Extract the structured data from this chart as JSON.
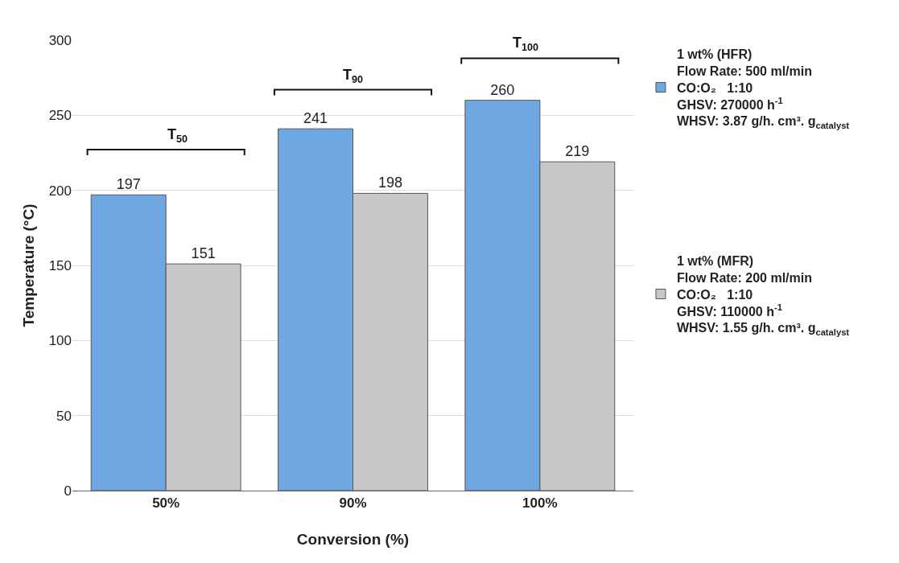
{
  "chart_data": {
    "type": "bar",
    "xlabel": "Conversion (%)",
    "ylabel": "Temperature (°C)",
    "categories": [
      "50%",
      "90%",
      "100%"
    ],
    "series": [
      {
        "name": "1 wt% (HFR)\nFlow Rate: 500 ml/min\nCO:O₂   1:10\nGHSV: 270000 h$^{-1}$\nWHSV: 3.87 g/h. cm³. g$_{catalyst}$",
        "color": "#6fa8e0",
        "values": [
          197,
          241,
          260
        ]
      },
      {
        "name": "1 wt% (MFR)\nFlow Rate: 200 ml/min\nCO:O₂   1:10\nGHSV: 110000 h$^{-1}$\nWHSV: 1.55 g/h. cm³. g$_{catalyst}$",
        "color": "#c8c8c8",
        "values": [
          151,
          198,
          219
        ]
      }
    ],
    "ylim": [
      0,
      300
    ],
    "yticks": [
      0,
      50,
      100,
      150,
      200,
      250,
      300
    ],
    "grid": "y",
    "legend": "right",
    "data_labels": true,
    "annotations": [
      "T$_{50}$",
      "T$_{90}$",
      "T$_{100}$"
    ]
  }
}
